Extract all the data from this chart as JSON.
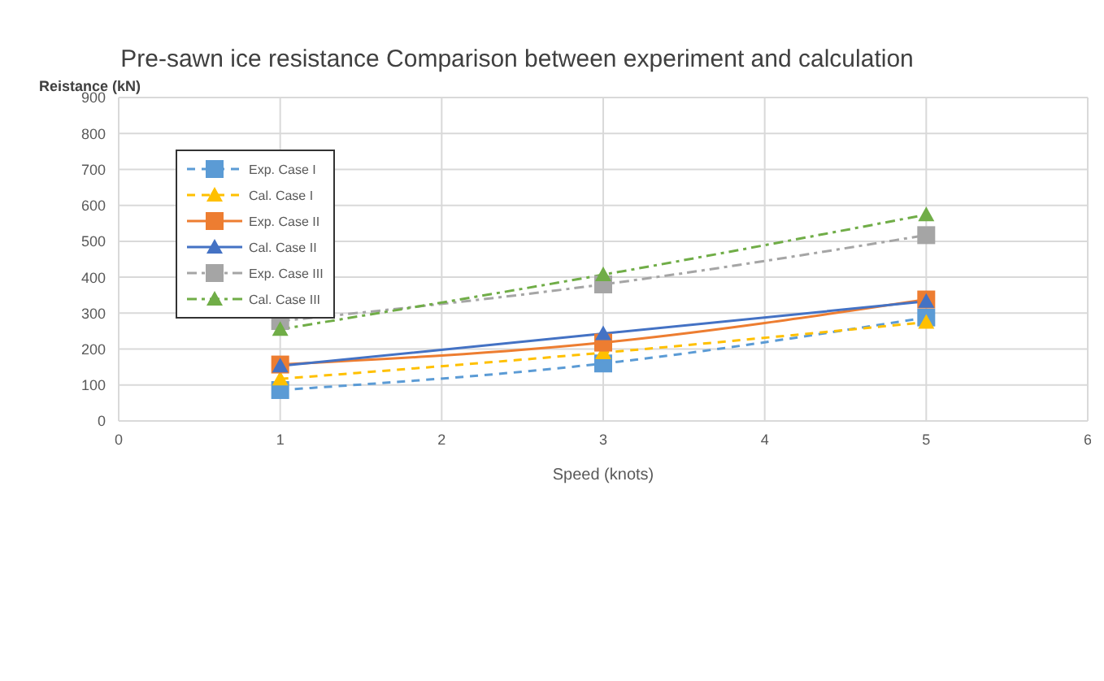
{
  "chart_data": {
    "type": "line",
    "title": "Pre-sawn ice resistance Comparison between experiment and calculation",
    "xlabel": "Speed (knots)",
    "ylabel": "Reistance (kN)",
    "x": [
      1,
      3,
      5
    ],
    "xlim": [
      0,
      6
    ],
    "xticks": [
      0,
      1,
      2,
      3,
      4,
      5,
      6
    ],
    "ylim": [
      0,
      900
    ],
    "yticks": [
      0,
      100,
      200,
      300,
      400,
      500,
      600,
      700,
      800,
      900
    ],
    "grid": true,
    "legend": "top left",
    "series": [
      {
        "name": "Exp. Case I",
        "color": "#5b9bd5",
        "values": [
          86,
          160,
          288
        ],
        "marker": "square",
        "line_style": "dashed"
      },
      {
        "name": "Cal. Case I",
        "color": "#ffc000",
        "values": [
          117,
          190,
          275
        ],
        "marker": "triangle",
        "line_style": "dashed"
      },
      {
        "name": "Exp. Case II",
        "color": "#ed7d31",
        "values": [
          157,
          218,
          338
        ],
        "marker": "square",
        "line_style": "solid"
      },
      {
        "name": "Cal. Case II",
        "color": "#4472c4",
        "values": [
          153,
          243,
          333
        ],
        "marker": "triangle",
        "line_style": "solid"
      },
      {
        "name": "Exp. Case III",
        "color": "#a5a5a5",
        "values": [
          278,
          380,
          517
        ],
        "marker": "square",
        "line_style": "dashdot"
      },
      {
        "name": "Cal. Case III",
        "color": "#70ad47",
        "values": [
          255,
          407,
          574
        ],
        "marker": "triangle",
        "line_style": "dashdot"
      }
    ]
  }
}
